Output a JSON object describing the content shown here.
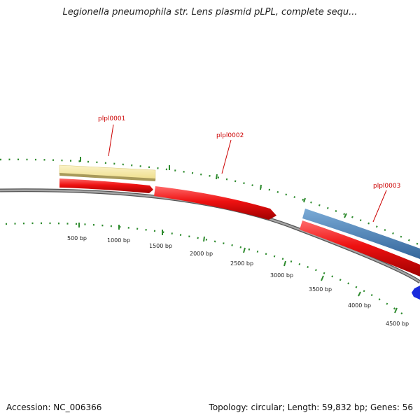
{
  "title": "Legionella pneumophila str. Lens plasmid pLPL, complete sequ...",
  "footer": {
    "accession": "Accession: NC_006366",
    "summary": "Topology: circular; Length: 59,832 bp; Genes: 56"
  },
  "colors": {
    "backbone": "#8a8a8a",
    "ticks": "#2e8b2e",
    "cds_red": "#ee1111",
    "yellow": "#f3e6a0",
    "blue": "#4f86bf",
    "small_blue": "#1a2cdd",
    "label_red": "#cc0000"
  },
  "tick_labels": [
    "500 bp",
    "1000 bp",
    "1500 bp",
    "2000 bp",
    "2500 bp",
    "3000 bp",
    "3500 bp",
    "4000 bp",
    "4500 bp"
  ],
  "genes": [
    {
      "label": "plpl0001"
    },
    {
      "label": "plpl0002"
    },
    {
      "label": "plpl0003"
    }
  ]
}
